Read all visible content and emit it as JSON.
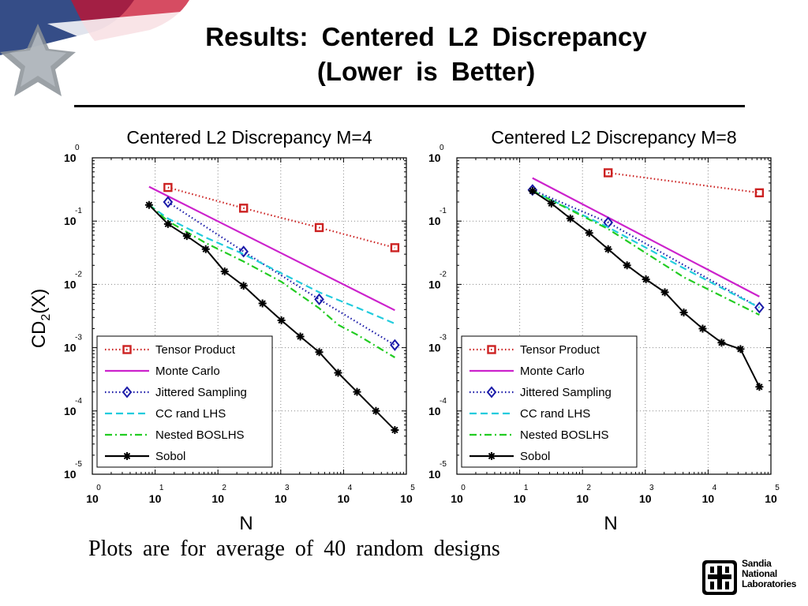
{
  "slide": {
    "title_line1": "Results:  Centered  L2  Discrepancy",
    "title_line2": "(Lower  is  Better)",
    "footnote": "Plots  are  for  average  of  40  random  designs",
    "logo_lines": [
      "Sandia",
      "National",
      "Laboratories"
    ]
  },
  "colors": {
    "tensor": "#cc2222",
    "monte": "#cc22cc",
    "jittered": "#1a1aa8",
    "cclhs": "#22ccdd",
    "nested": "#22cc22",
    "sobol": "#000000"
  },
  "chart_data": [
    {
      "type": "line",
      "title": "Centered L2 Discrepancy M=4",
      "xlabel": "N",
      "ylabel": "CD2(X)",
      "xscale": "log",
      "yscale": "log",
      "xlim": [
        1,
        100000
      ],
      "ylim": [
        1e-05,
        1
      ],
      "xtick_exponents": [
        "0",
        "1",
        "2",
        "3",
        "4",
        "5"
      ],
      "ytick_exponents": [
        "0",
        "-1",
        "-2",
        "-3",
        "-4",
        "-5"
      ],
      "grid": true,
      "legend_position": "bottom-left",
      "series": [
        {
          "name": "Tensor Product",
          "key": "tensor",
          "style": "dotted",
          "marker": "square",
          "x": [
            16,
            256,
            4096,
            65536
          ],
          "y": [
            0.34,
            0.16,
            0.079,
            0.038
          ]
        },
        {
          "name": "Monte Carlo",
          "key": "monte",
          "style": "solid",
          "marker": "none",
          "x": [
            8,
            65536
          ],
          "y": [
            0.35,
            0.0039
          ]
        },
        {
          "name": "Jittered Sampling",
          "key": "jittered",
          "style": "dotted",
          "marker": "diamond",
          "x": [
            16,
            256,
            4096,
            65536
          ],
          "y": [
            0.2,
            0.033,
            0.0058,
            0.0011
          ]
        },
        {
          "name": "CC rand LHS",
          "key": "cclhs",
          "style": "dashed",
          "marker": "none",
          "x": [
            8,
            16,
            64,
            256,
            1024,
            4096,
            16384,
            65536
          ],
          "y": [
            0.18,
            0.11,
            0.055,
            0.03,
            0.015,
            0.0075,
            0.0043,
            0.0024
          ]
        },
        {
          "name": "Nested BOSLHS",
          "key": "nested",
          "style": "dashdot",
          "marker": "none",
          "x": [
            8,
            16,
            64,
            256,
            1024,
            4096,
            8192,
            16384,
            65536
          ],
          "y": [
            0.18,
            0.1,
            0.045,
            0.023,
            0.011,
            0.0042,
            0.0023,
            0.0016,
            0.0007
          ]
        },
        {
          "name": "Sobol",
          "key": "sobol",
          "style": "solid",
          "marker": "star",
          "x": [
            8,
            16,
            32,
            64,
            128,
            256,
            512,
            1024,
            2048,
            4096,
            8192,
            16384,
            32768,
            65536
          ],
          "y": [
            0.18,
            0.09,
            0.058,
            0.036,
            0.016,
            0.0095,
            0.005,
            0.0027,
            0.0015,
            0.00085,
            0.0004,
            0.0002,
            0.0001,
            5e-05
          ]
        }
      ]
    },
    {
      "type": "line",
      "title": "Centered L2 Discrepancy M=8",
      "xlabel": "N",
      "ylabel": "",
      "xscale": "log",
      "yscale": "log",
      "xlim": [
        1,
        100000
      ],
      "ylim": [
        1e-05,
        1
      ],
      "xtick_exponents": [
        "0",
        "1",
        "2",
        "3",
        "4",
        "5"
      ],
      "ytick_exponents": [
        "0",
        "-1",
        "-2",
        "-3",
        "-4",
        "-5"
      ],
      "grid": true,
      "legend_position": "bottom-left",
      "series": [
        {
          "name": "Tensor Product",
          "key": "tensor",
          "style": "dotted",
          "marker": "square",
          "x": [
            256,
            65536
          ],
          "y": [
            0.58,
            0.28
          ]
        },
        {
          "name": "Monte Carlo",
          "key": "monte",
          "style": "solid",
          "marker": "none",
          "x": [
            16,
            65536
          ],
          "y": [
            0.48,
            0.0064
          ]
        },
        {
          "name": "Jittered Sampling",
          "key": "jittered",
          "style": "dotted",
          "marker": "diamond",
          "x": [
            16,
            256,
            65536
          ],
          "y": [
            0.31,
            0.095,
            0.0043
          ]
        },
        {
          "name": "CC rand LHS",
          "key": "cclhs",
          "style": "dashed",
          "marker": "none",
          "x": [
            16,
            256,
            4096,
            65536
          ],
          "y": [
            0.3,
            0.08,
            0.018,
            0.0043
          ]
        },
        {
          "name": "Nested BOSLHS",
          "key": "nested",
          "style": "dashdot",
          "marker": "none",
          "x": [
            16,
            256,
            4096,
            65536
          ],
          "y": [
            0.3,
            0.075,
            0.013,
            0.0033
          ]
        },
        {
          "name": "Sobol",
          "key": "sobol",
          "style": "solid",
          "marker": "star",
          "x": [
            16,
            32,
            64,
            128,
            256,
            512,
            1024,
            2048,
            4096,
            8192,
            16384,
            32768,
            65536
          ],
          "y": [
            0.3,
            0.19,
            0.11,
            0.065,
            0.036,
            0.02,
            0.012,
            0.0075,
            0.0036,
            0.002,
            0.0012,
            0.00095,
            0.00024
          ]
        }
      ]
    }
  ]
}
